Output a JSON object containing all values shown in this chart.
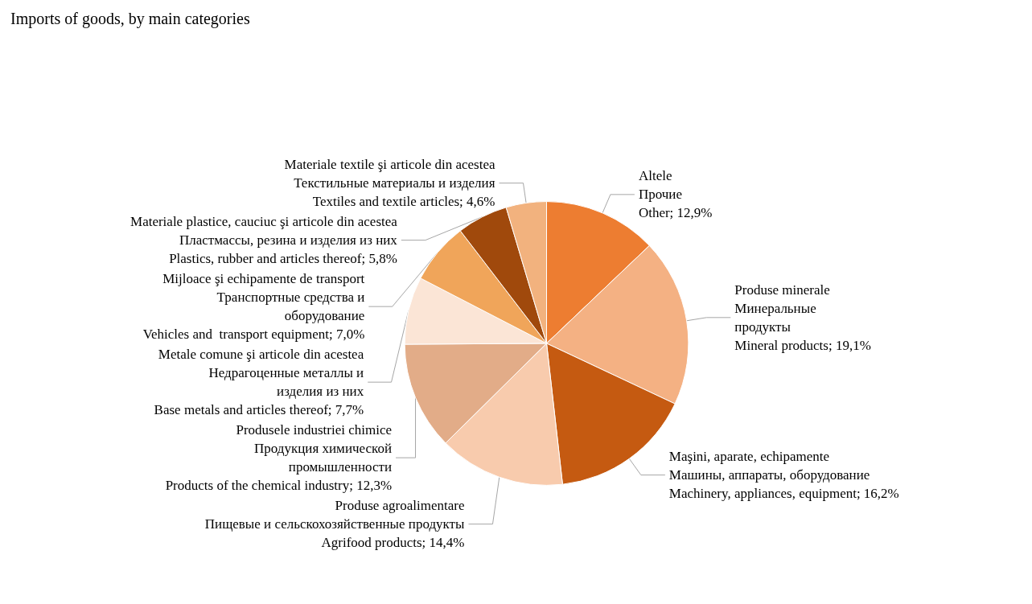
{
  "chart_data": {
    "type": "pie",
    "title": "Imports of goods, by main categories",
    "categories": [
      "Altele\nПрочие\nOther",
      "Produse minerale\nМинеральные\nпродукты\nMineral products",
      "Maşini, aparate, echipamente\nМашины, аппараты, оборудование\nMachinery, appliances, equipment",
      "Produse agroalimentare\nПищевые и сельскохозяйственные продукты\nAgrifood products",
      "Produsele industriei chimice\nПродукция химической\nпромышленности\nProducts of the chemical industry",
      "Metale comune şi articole din acestea\nНедрагоценные металлы и\nизделия из них\nBase metals and articles thereof",
      "Mijloace şi echipamente de transport\nТранспортные средства и\nоборудование\nVehicles and  transport equipment",
      "Materiale plastice, cauciuc şi articole din acestea\nПластмассы, резина и изделия из них\nPlastics, rubber and articles thereof",
      "Materiale textile şi articole din acestea\nТекстильные материалы и изделия\nTextiles and textile articles"
    ],
    "values": [
      12.9,
      19.1,
      16.2,
      14.4,
      12.3,
      7.7,
      7.0,
      5.8,
      4.6
    ],
    "value_labels": [
      "12,9%",
      "19,1%",
      "16,2%",
      "14,4%",
      "12,3%",
      "7,7%",
      "7,0%",
      "5,8%",
      "4,6%"
    ],
    "colors": [
      "#ed7d31",
      "#f4b183",
      "#c55a11",
      "#f8cbad",
      "#e2ac88",
      "#fbe5d6",
      "#f0a55a",
      "#a0490c",
      "#f2b27e"
    ]
  }
}
